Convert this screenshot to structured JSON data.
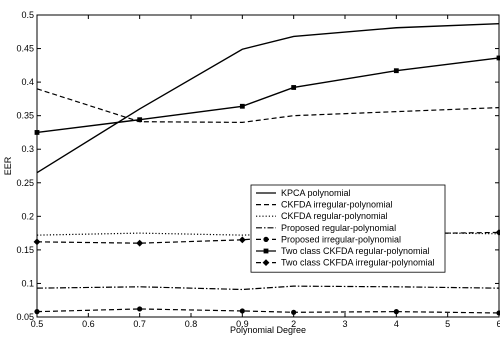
{
  "chart_data": {
    "type": "line",
    "title": "",
    "xlabel": "Polynomial Degree",
    "ylabel": "EER",
    "x_ticks": [
      "0.5",
      "0.6",
      "0.7",
      "0.8",
      "0.9",
      "2",
      "3",
      "4",
      "5",
      "6"
    ],
    "y_ticks": [
      "0.05",
      "0.1",
      "0.15",
      "0.2",
      "0.25",
      "0.3",
      "0.35",
      "0.4",
      "0.45",
      "0.5"
    ],
    "ylim": [
      0.05,
      0.5
    ],
    "grid": false,
    "legend_position": "center-right",
    "series": [
      {
        "name": "KPCA polynomial",
        "style": "solid",
        "marker": "none",
        "x": [
          "0.5",
          "0.7",
          "0.9",
          "2",
          "4",
          "6"
        ],
        "values": [
          0.265,
          0.36,
          0.449,
          0.468,
          0.481,
          0.487
        ]
      },
      {
        "name": "CKFDA irregular-polynomial",
        "style": "dashed",
        "marker": "none",
        "x": [
          "0.5",
          "0.7",
          "0.9",
          "2",
          "4",
          "6"
        ],
        "values": [
          0.39,
          0.341,
          0.34,
          0.35,
          0.356,
          0.362
        ]
      },
      {
        "name": "CKFDA regular-polynomial",
        "style": "dotted",
        "marker": "none",
        "x": [
          "0.5",
          "0.7",
          "0.9",
          "2",
          "4",
          "6"
        ],
        "values": [
          0.172,
          0.175,
          0.172,
          0.174,
          0.176,
          0.174
        ]
      },
      {
        "name": "Proposed regular-polynomial",
        "style": "dashdot",
        "marker": "none",
        "x": [
          "0.5",
          "0.7",
          "0.9",
          "2",
          "4",
          "6"
        ],
        "values": [
          0.093,
          0.095,
          0.091,
          0.096,
          0.095,
          0.093
        ]
      },
      {
        "name": "Proposed irregular-polynomial",
        "style": "dashed",
        "marker": "circle",
        "x": [
          "0.5",
          "0.7",
          "0.9",
          "2",
          "4",
          "6"
        ],
        "values": [
          0.058,
          0.062,
          0.059,
          0.057,
          0.058,
          0.056
        ]
      },
      {
        "name": "Two class CKFDA regular-polynomial",
        "style": "solid",
        "marker": "square",
        "x": [
          "0.5",
          "0.7",
          "0.9",
          "2",
          "4",
          "6"
        ],
        "values": [
          0.325,
          0.344,
          0.364,
          0.392,
          0.417,
          0.436
        ]
      },
      {
        "name": "Two class CKFDA irregular-polynomial",
        "style": "dashed",
        "marker": "diamond",
        "x": [
          "0.5",
          "0.7",
          "0.9",
          "2",
          "4",
          "6"
        ],
        "values": [
          0.162,
          0.16,
          0.165,
          0.171,
          0.174,
          0.176
        ]
      }
    ]
  }
}
